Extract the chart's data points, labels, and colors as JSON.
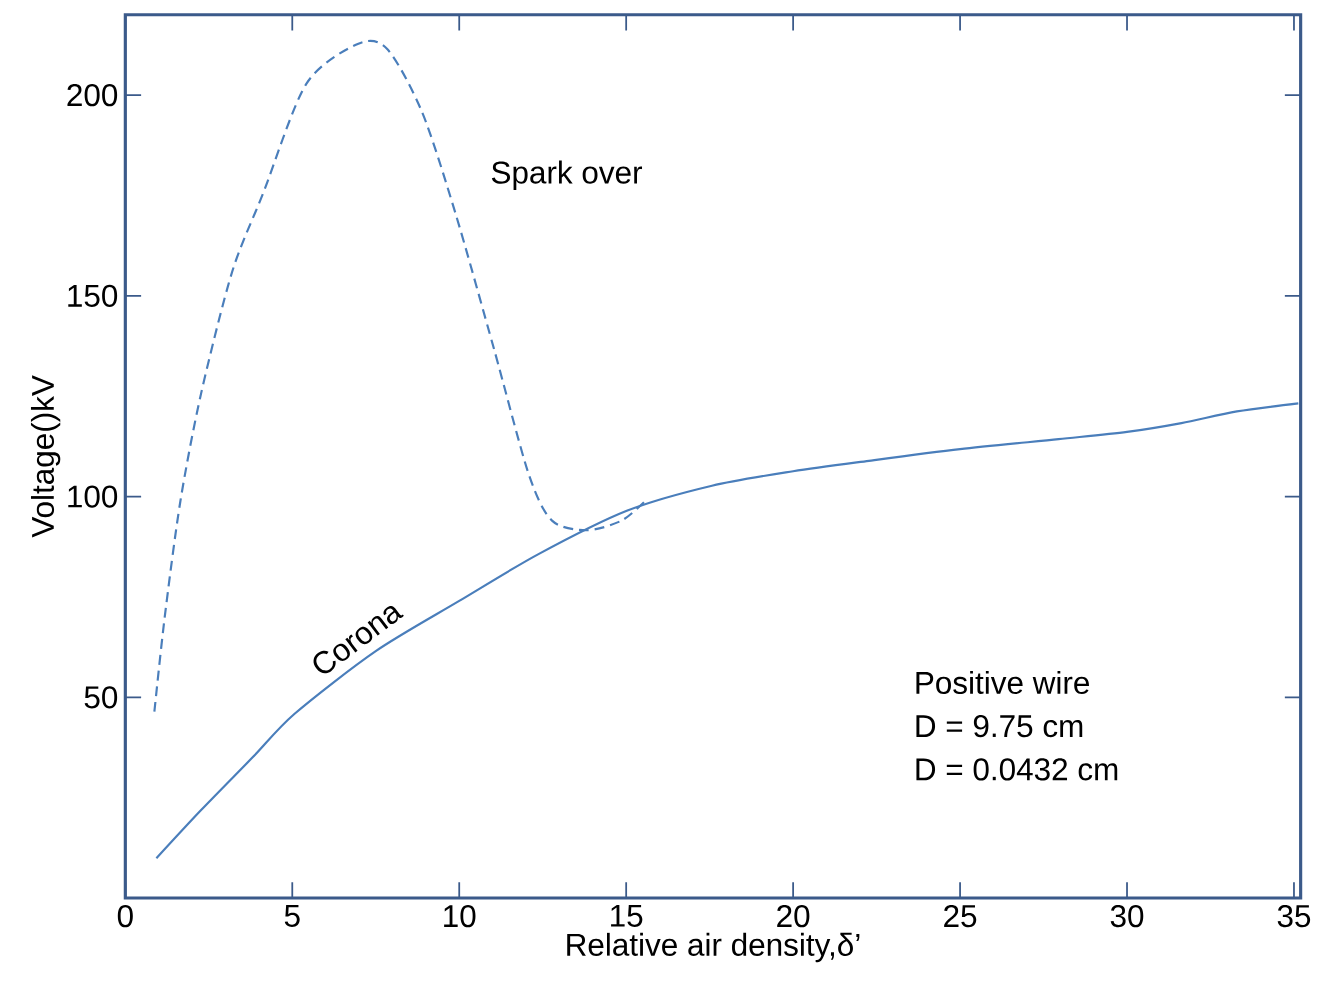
{
  "chart_data": {
    "type": "line",
    "xlabel": "Relative air density,δ’",
    "ylabel": "Voltage()kV",
    "xlim": [
      0,
      35.2
    ],
    "ylim": [
      0,
      220
    ],
    "xticks": [
      0,
      5,
      10,
      15,
      20,
      25,
      30,
      35
    ],
    "yticks": [
      50,
      100,
      150,
      200
    ],
    "series": [
      {
        "name": "Spark over",
        "color": "#4a7ebb",
        "line_style": "dashed",
        "x": [
          0.87,
          1.18,
          1.65,
          2.27,
          3.2,
          4.13,
          5.42,
          6.98,
          7.85,
          8.89,
          9.9,
          11.04,
          12.08,
          12.78,
          13.82,
          14.86,
          15.56
        ],
        "values": [
          46.4,
          70,
          98.9,
          125.7,
          156,
          175.6,
          202.8,
          212.8,
          211.4,
          195.7,
          170.2,
          136.8,
          105.6,
          94,
          91.6,
          94,
          98.8
        ]
      },
      {
        "name": "Corona",
        "color": "#4a7ebb",
        "line_style": "solid",
        "x": [
          0.93,
          2.27,
          3.82,
          5.07,
          7.5,
          10,
          12.36,
          15,
          17.57,
          20,
          22.27,
          25,
          27.95,
          30,
          31.63,
          33.29,
          35.13
        ],
        "values": [
          9.9,
          21.9,
          35.1,
          45.9,
          61.5,
          74,
          85.6,
          96.4,
          102.7,
          106.3,
          108.9,
          111.8,
          114.3,
          116.1,
          118.3,
          121.2,
          123.2
        ]
      }
    ],
    "annotations": [
      "Positive wire",
      "D = 9.75 cm",
      "D = 0.0432 cm"
    ]
  }
}
